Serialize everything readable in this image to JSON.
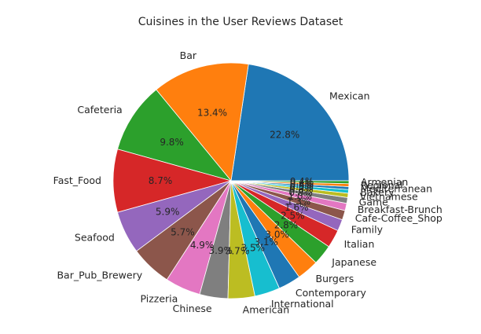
{
  "chart_data": {
    "type": "pie",
    "title": "Cuisines in the User Reviews Dataset",
    "start_angle_deg": 0,
    "direction": "counterclockwise",
    "slices": [
      {
        "label": "Mexican",
        "value": 22.8,
        "pct_text": "22.8%",
        "color": "#1f77b4"
      },
      {
        "label": "Bar",
        "value": 13.4,
        "pct_text": "13.4%",
        "color": "#ff7f0e"
      },
      {
        "label": "Cafeteria",
        "value": 9.8,
        "pct_text": "9.8%",
        "color": "#2ca02c"
      },
      {
        "label": "Fast_Food",
        "value": 8.7,
        "pct_text": "8.7%",
        "color": "#d62728"
      },
      {
        "label": "Seafood",
        "value": 5.9,
        "pct_text": "5.9%",
        "color": "#9467bd"
      },
      {
        "label": "Bar_Pub_Brewery",
        "value": 5.7,
        "pct_text": "5.7%",
        "color": "#8c564b"
      },
      {
        "label": "Pizzeria",
        "value": 4.9,
        "pct_text": "4.9%",
        "color": "#e377c2"
      },
      {
        "label": "Chinese",
        "value": 3.9,
        "pct_text": "3.9%",
        "color": "#7f7f7f"
      },
      {
        "label": "American",
        "value": 3.7,
        "pct_text": "3.7%",
        "color": "#bcbd22"
      },
      {
        "label": "International",
        "value": 3.5,
        "pct_text": "3.5%",
        "color": "#17becf"
      },
      {
        "label": "Contemporary",
        "value": 3.1,
        "pct_text": "3.1%",
        "color": "#1f77b4"
      },
      {
        "label": "Burgers",
        "value": 3.0,
        "pct_text": "3.0%",
        "color": "#ff7f0e"
      },
      {
        "label": "Japanese",
        "value": 2.8,
        "pct_text": "2.8%",
        "color": "#2ca02c"
      },
      {
        "label": "Italian",
        "value": 2.5,
        "pct_text": "2.5%",
        "color": "#d62728"
      },
      {
        "label": "Family",
        "value": 1.6,
        "pct_text": "1.6%",
        "color": "#9467bd"
      },
      {
        "label": "Cafe-Coffee_Shop",
        "value": 1.3,
        "pct_text": "1.3%",
        "color": "#8c564b"
      },
      {
        "label": "Breakfast-Brunch",
        "value": 1.0,
        "pct_text": "1.0%",
        "color": "#e377c2"
      },
      {
        "label": "Game",
        "value": 0.8,
        "pct_text": "0.8%",
        "color": "#7f7f7f"
      },
      {
        "label": "Vietnamese",
        "value": 0.6,
        "pct_text": "0.6%",
        "color": "#bcbd22"
      },
      {
        "label": "Bakery",
        "value": 0.5,
        "pct_text": "0.5%",
        "color": "#17becf"
      },
      {
        "label": "Mediterranean",
        "value": 0.4,
        "pct_text": "0.4%",
        "color": "#1f77b4"
      },
      {
        "label": "Regional",
        "value": 0.4,
        "pct_text": "0.4%",
        "color": "#ff7f0e"
      },
      {
        "label": "Armenian",
        "value": 0.4,
        "pct_text": "0.4%",
        "color": "#2ca02c"
      }
    ]
  }
}
